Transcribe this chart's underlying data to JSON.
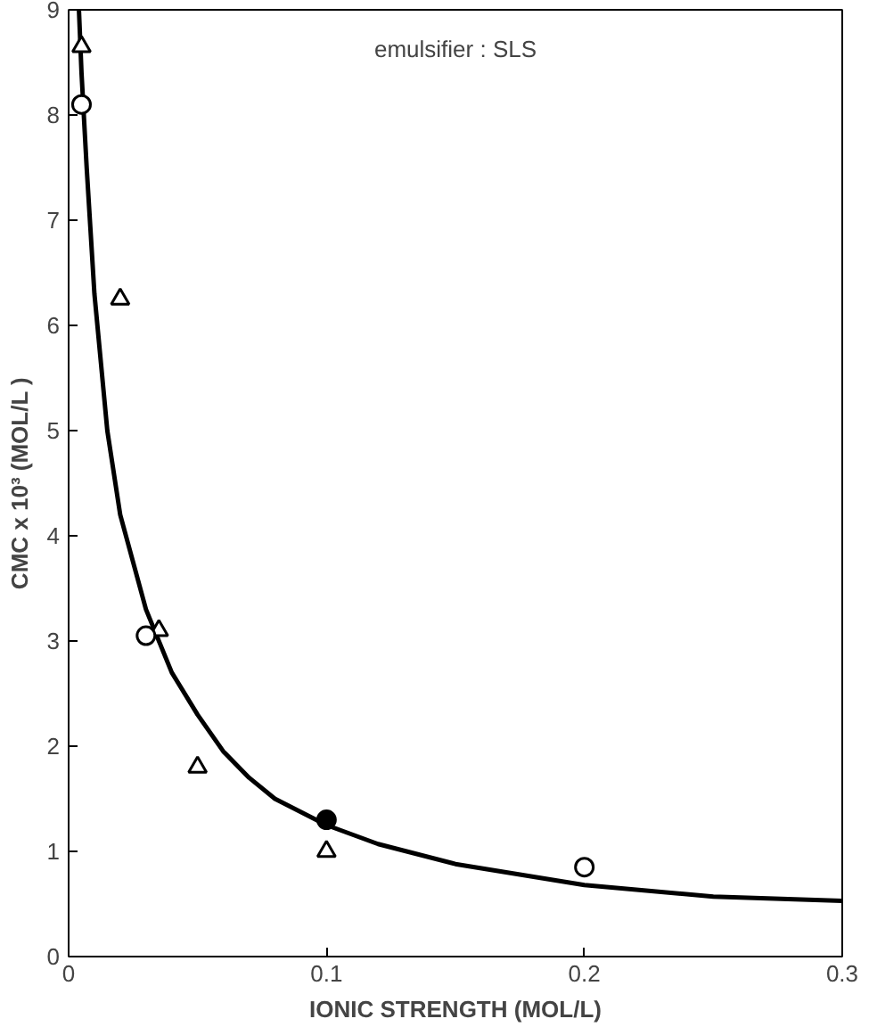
{
  "chart_data": {
    "type": "scatter",
    "xlabel": "IONIC STRENGTH (MOL/L)",
    "ylabel": "CMC x 10³ (MOL/L )",
    "annotations": [
      "emulsifier : SLS"
    ],
    "xlim": [
      0,
      0.3
    ],
    "ylim": [
      0,
      9
    ],
    "xticks": [
      0,
      0.1,
      0.2,
      0.3
    ],
    "yticks": [
      0,
      1,
      2,
      3,
      4,
      5,
      6,
      7,
      8,
      9
    ],
    "grid": false,
    "series": [
      {
        "type": "line",
        "color": "#000000",
        "marker": "none",
        "x": [
          0.004,
          0.005,
          0.007,
          0.01,
          0.015,
          0.02,
          0.03,
          0.04,
          0.05,
          0.06,
          0.07,
          0.08,
          0.1,
          0.12,
          0.15,
          0.2,
          0.25,
          0.3
        ],
        "values": [
          9.0,
          8.4,
          7.5,
          6.3,
          5.0,
          4.2,
          3.3,
          2.7,
          2.3,
          1.95,
          1.7,
          1.5,
          1.25,
          1.07,
          0.88,
          0.68,
          0.57,
          0.53
        ]
      },
      {
        "color": "#000000",
        "marker": "triangle",
        "x": [
          0.005,
          0.02,
          0.035,
          0.05,
          0.1
        ],
        "values": [
          8.65,
          6.25,
          3.1,
          1.8,
          1.0
        ]
      },
      {
        "color": "#000000",
        "marker": "circle",
        "x": [
          0.005,
          0.03,
          0.2
        ],
        "values": [
          8.1,
          3.05,
          0.85
        ]
      },
      {
        "color": "#000000",
        "marker": "circle",
        "x": [
          0.1
        ],
        "values": [
          1.3
        ]
      }
    ]
  }
}
